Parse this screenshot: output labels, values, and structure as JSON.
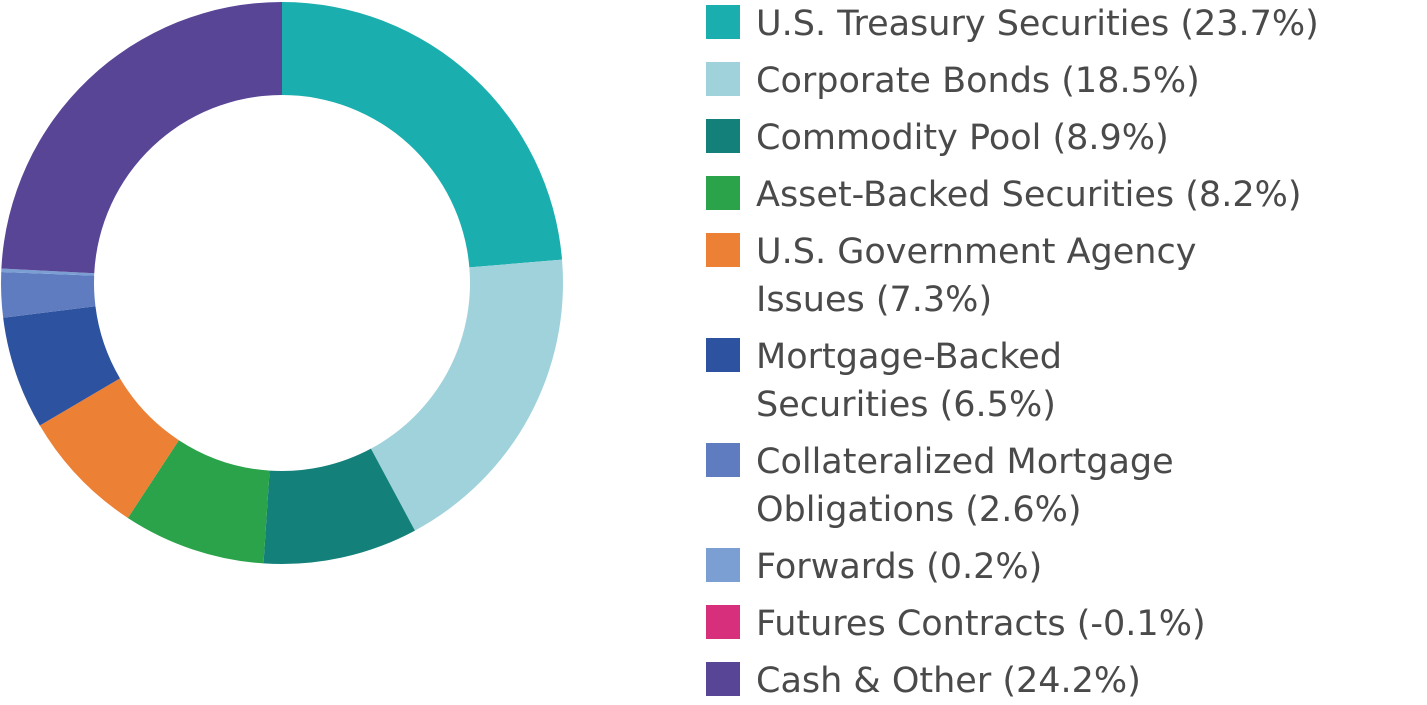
{
  "chart_data": {
    "type": "pie",
    "title": "",
    "slices": [
      {
        "label": "U.S. Treasury Securities (23.7%)",
        "display": "U.S. Treasury Securities (23.7%)",
        "value": 23.7,
        "color": "#1aaeae",
        "icon": "teal-swatch"
      },
      {
        "label": "Corporate Bonds (18.5%)",
        "display": "Corporate Bonds (18.5%)",
        "value": 18.5,
        "color": "#a0d2db",
        "icon": "light-blue-swatch"
      },
      {
        "label": "Commodity Pool (8.9%)",
        "display": "Commodity Pool (8.9%)",
        "value": 8.9,
        "color": "#14807a",
        "icon": "dark-teal-swatch"
      },
      {
        "label": "Asset-Backed Securities (8.2%)",
        "display": "Asset-Backed Securities (8.2%)",
        "value": 8.2,
        "color": "#2aa34b",
        "icon": "green-swatch"
      },
      {
        "label": "U.S. Government Agency Issues (7.3%)",
        "display": "U.S. Government Agency\nIssues (7.3%)",
        "value": 7.3,
        "color": "#ec8035",
        "icon": "orange-swatch"
      },
      {
        "label": "Mortgage-Backed Securities (6.5%)",
        "display": "Mortgage-Backed\nSecurities (6.5%)",
        "value": 6.5,
        "color": "#2c52a0",
        "icon": "navy-swatch"
      },
      {
        "label": "Collateralized Mortgage Obligations (2.6%)",
        "display": "Collateralized Mortgage\nObligations (2.6%)",
        "value": 2.6,
        "color": "#5f7cc0",
        "icon": "periwinkle-swatch"
      },
      {
        "label": "Forwards (0.2%)",
        "display": "Forwards (0.2%)",
        "value": 0.2,
        "color": "#7b9fd2",
        "icon": "sky-blue-swatch"
      },
      {
        "label": "Futures Contracts (-0.1%)",
        "display": "Futures Contracts (-0.1%)",
        "value": -0.1,
        "color": "#d82f7c",
        "icon": "magenta-swatch"
      },
      {
        "label": "Cash & Other (24.2%)",
        "display": "Cash & Other (24.2%)",
        "value": 24.2,
        "color": "#584596",
        "icon": "purple-swatch"
      }
    ],
    "legend_placement": "right"
  }
}
